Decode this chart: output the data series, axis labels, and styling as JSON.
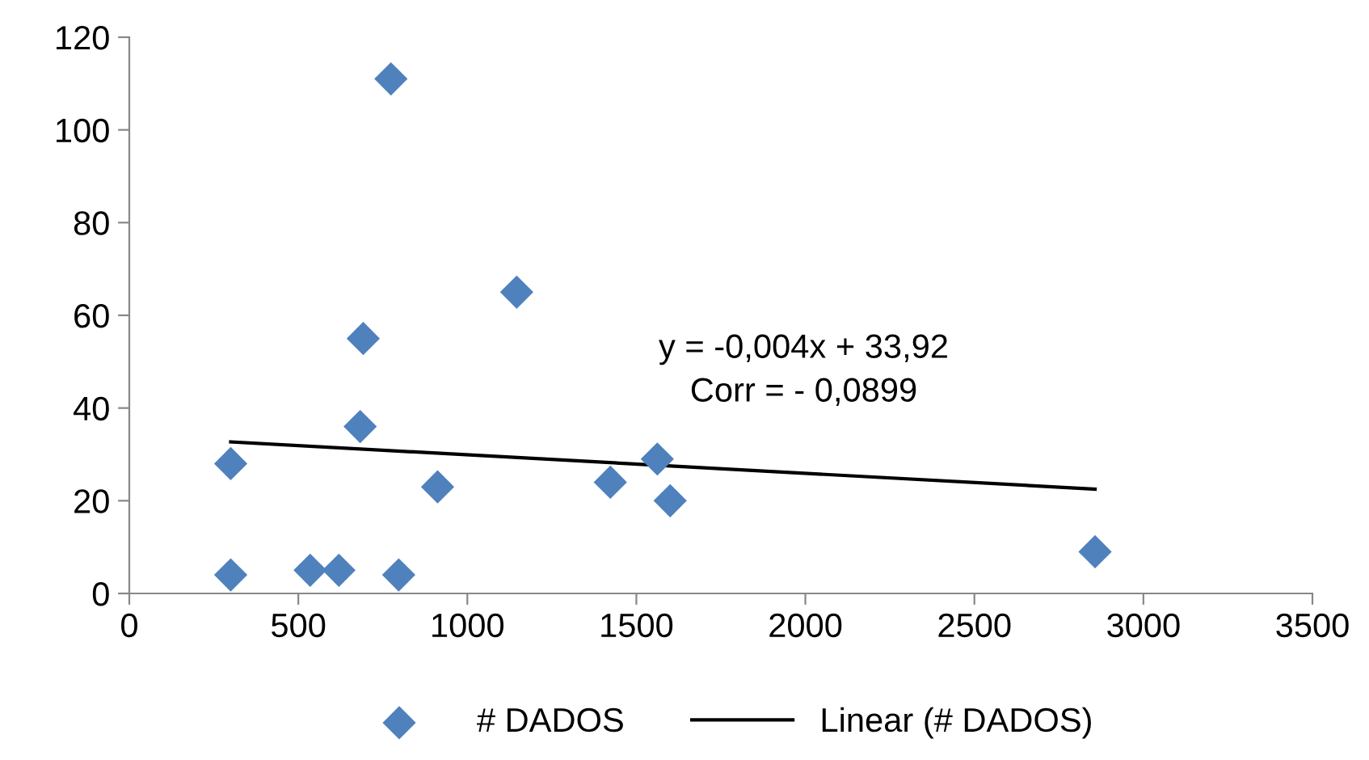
{
  "chart_data": {
    "type": "scatter",
    "xlim": [
      0,
      3500
    ],
    "ylim": [
      0,
      120
    ],
    "xticks": [
      0,
      500,
      1000,
      1500,
      2000,
      2500,
      3000,
      3500
    ],
    "yticks": [
      0,
      20,
      40,
      60,
      80,
      100,
      120
    ],
    "grid": false,
    "legend": "bottom",
    "series": [
      {
        "name": "# DADOS",
        "color": "#4f81bd",
        "marker": "diamond",
        "x": [
          300,
          300,
          535,
          620,
          683,
          692,
          774,
          797,
          912,
          1146,
          1423,
          1562,
          1600,
          2857
        ],
        "values": [
          28,
          4,
          5,
          5,
          36,
          55,
          111,
          4,
          23,
          65,
          24,
          29,
          20,
          9
        ]
      },
      {
        "name": "Linear (# DADOS)",
        "type": "line",
        "color": "#000000",
        "x": [
          300,
          2857
        ],
        "values": [
          32.7,
          22.5
        ]
      }
    ],
    "annotations": [
      "y = -0,004x + 33,92\nCorr = - 0,0899"
    ]
  }
}
